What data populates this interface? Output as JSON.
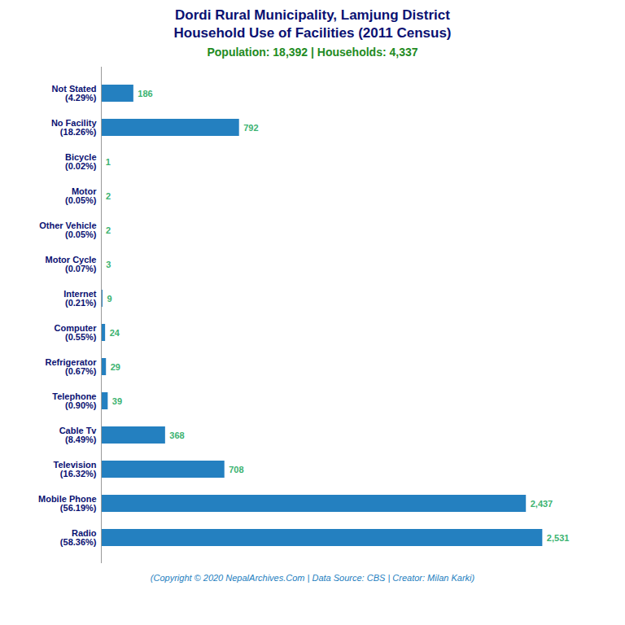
{
  "chart_data": {
    "type": "bar",
    "orientation": "horizontal",
    "title": "Dordi Rural Municipality, Lamjung District\nHousehold Use of Facilities (2011 Census)",
    "subtitle": "Population: 18,392 | Households: 4,337",
    "footer": "(Copyright © 2020 NepalArchives.Com | Data Source: CBS | Creator: Milan Karki)",
    "categories": [
      "Radio\n(58.36%)",
      "Mobile Phone\n(56.19%)",
      "Television\n(16.32%)",
      "Cable Tv\n(8.49%)",
      "Telephone\n(0.90%)",
      "Refrigerator\n(0.67%)",
      "Computer\n(0.55%)",
      "Internet\n(0.21%)",
      "Motor Cycle\n(0.07%)",
      "Other Vehicle\n(0.05%)",
      "Motor\n(0.05%)",
      "Bicycle\n(0.02%)",
      "No Facility\n(18.26%)",
      "Not Stated\n(4.29%)"
    ],
    "values": [
      2531,
      2437,
      708,
      368,
      39,
      29,
      24,
      9,
      3,
      2,
      2,
      1,
      792,
      186
    ],
    "value_labels": [
      "2,531",
      "2,437",
      "708",
      "368",
      "39",
      "29",
      "24",
      "9",
      "3",
      "2",
      "2",
      "1",
      "792",
      "186"
    ],
    "data_labels": true,
    "color": "#2480C0",
    "xlim": [
      0,
      2800
    ],
    "tick_labels": "y",
    "grid": false
  }
}
